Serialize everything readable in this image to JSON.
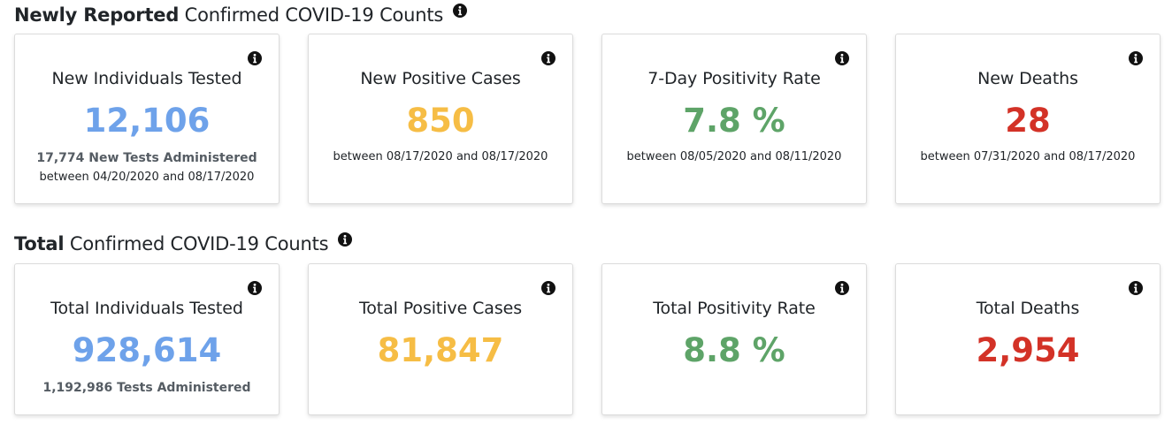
{
  "colors": {
    "blue": "#6ea2ea",
    "orange": "#f6bd45",
    "green": "#5ea468",
    "red": "#d33227"
  },
  "icons": {
    "info": "info-circle-icon"
  },
  "newly": {
    "title_bold": "Newly Reported",
    "title_rest": " Confirmed COVID-19 Counts",
    "cards": [
      {
        "title": "New Individuals Tested",
        "value": "12,106",
        "sub": "17,774 New Tests Administered",
        "range": "between 04/20/2020 and 08/17/2020"
      },
      {
        "title": "New Positive Cases",
        "value": "850",
        "range": "between 08/17/2020 and 08/17/2020"
      },
      {
        "title": "7-Day Positivity Rate",
        "value": "7.8 %",
        "range": "between 08/05/2020 and 08/11/2020"
      },
      {
        "title": "New Deaths",
        "value": "28",
        "range": "between 07/31/2020 and 08/17/2020"
      }
    ]
  },
  "total": {
    "title_bold": "Total",
    "title_rest": " Confirmed COVID-19 Counts",
    "cards": [
      {
        "title": "Total Individuals Tested",
        "value": "928,614",
        "sub": "1,192,986 Tests Administered"
      },
      {
        "title": "Total Positive Cases",
        "value": "81,847"
      },
      {
        "title": "Total Positivity Rate",
        "value": "8.8 %"
      },
      {
        "title": "Total Deaths",
        "value": "2,954"
      }
    ]
  }
}
